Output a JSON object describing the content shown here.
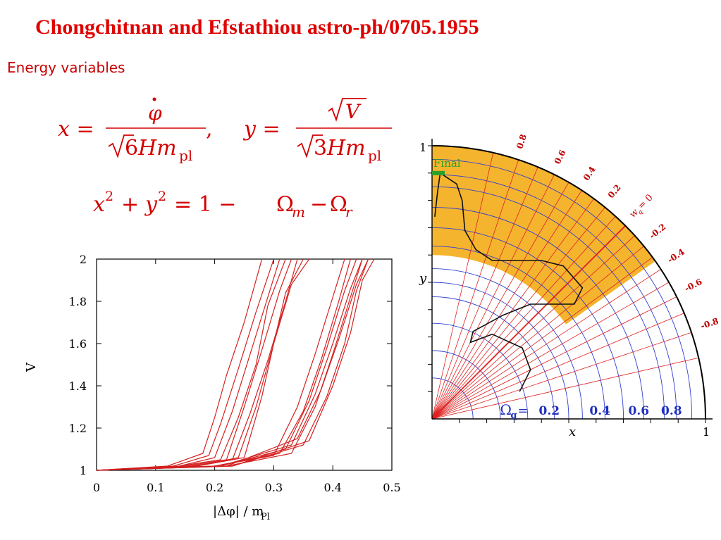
{
  "slide": {
    "title": "Chongchitnan and Efstathiou astro-ph/0705.1955",
    "section": "Energy variables",
    "colors": {
      "title": "#e00000",
      "equation": "#d40000"
    }
  },
  "equations": {
    "x_lhs": "x =",
    "x_num": "φ",
    "x_den_sqrt": "6",
    "x_den_rest": "Hm",
    "x_den_sub": "pl",
    "comma": ",",
    "y_lhs": "y =",
    "y_num": "V",
    "y_den_sqrt": "3",
    "y_den_rest": "Hm",
    "y_den_sub": "pl",
    "energy_line": {
      "x": "x",
      "y": "y",
      "exp": "2",
      "plus": "+",
      "eq": "= 1 −",
      "omega": "Ω",
      "m_sub": "m",
      "minus": "−",
      "r_sub": "r"
    }
  },
  "chart_data": [
    {
      "type": "line",
      "xlabel_main": "|Δφ| / m",
      "xlabel_sub": "Pl",
      "ylabel": "V",
      "xlim": [
        0,
        0.5
      ],
      "ylim": [
        1,
        2
      ],
      "x_ticks": [
        0,
        0.1,
        0.2,
        0.3,
        0.4,
        0.5
      ],
      "y_ticks": [
        1,
        1.2,
        1.4,
        1.6,
        1.8,
        2
      ],
      "x_tick_labels": [
        "0",
        "0.1",
        "0.2",
        "0.3",
        "0.4",
        "0.5"
      ],
      "y_tick_labels": [
        "1",
        "1.2",
        "1.4",
        "1.6",
        "1.8",
        "2"
      ],
      "grid": false,
      "line_color": "#d42020",
      "series": [
        {
          "x": [
            0,
            0.12,
            0.18,
            0.2,
            0.22,
            0.25,
            0.28
          ],
          "y": [
            1,
            1.02,
            1.08,
            1.25,
            1.45,
            1.7,
            2.0
          ]
        },
        {
          "x": [
            0,
            0.13,
            0.19,
            0.21,
            0.24,
            0.27,
            0.3
          ],
          "y": [
            1,
            1.02,
            1.07,
            1.22,
            1.48,
            1.75,
            2.0
          ]
        },
        {
          "x": [
            0,
            0.14,
            0.2,
            0.23,
            0.26,
            0.29,
            0.31
          ],
          "y": [
            1,
            1.02,
            1.06,
            1.28,
            1.55,
            1.82,
            2.0
          ]
        },
        {
          "x": [
            0,
            0.14,
            0.21,
            0.24,
            0.27,
            0.29,
            0.32
          ],
          "y": [
            1,
            1.02,
            1.05,
            1.25,
            1.5,
            1.78,
            2.0
          ]
        },
        {
          "x": [
            0,
            0.15,
            0.22,
            0.25,
            0.28,
            0.31,
            0.33
          ],
          "y": [
            1,
            1.02,
            1.05,
            1.3,
            1.57,
            1.85,
            2.0
          ]
        },
        {
          "x": [
            0,
            0.16,
            0.23,
            0.26,
            0.29,
            0.32,
            0.34
          ],
          "y": [
            1,
            1.02,
            1.05,
            1.27,
            1.52,
            1.8,
            2.0
          ]
        },
        {
          "x": [
            0,
            0.17,
            0.24,
            0.27,
            0.3,
            0.32,
            0.35
          ],
          "y": [
            1,
            1.02,
            1.06,
            1.3,
            1.6,
            1.84,
            2.0
          ]
        },
        {
          "x": [
            0,
            0.17,
            0.25,
            0.28,
            0.3,
            0.33,
            0.36
          ],
          "y": [
            1,
            1.02,
            1.06,
            1.35,
            1.6,
            1.88,
            2.0
          ]
        },
        {
          "x": [
            0,
            0.2,
            0.3,
            0.34,
            0.37,
            0.4,
            0.42
          ],
          "y": [
            1,
            1.02,
            1.07,
            1.3,
            1.55,
            1.82,
            2.0
          ]
        },
        {
          "x": [
            0,
            0.2,
            0.31,
            0.35,
            0.38,
            0.41,
            0.43
          ],
          "y": [
            1,
            1.02,
            1.08,
            1.28,
            1.52,
            1.8,
            2.0
          ]
        },
        {
          "x": [
            0,
            0.21,
            0.32,
            0.36,
            0.39,
            0.42,
            0.44
          ],
          "y": [
            1,
            1.02,
            1.1,
            1.33,
            1.58,
            1.85,
            2.0
          ]
        },
        {
          "x": [
            0,
            0.21,
            0.33,
            0.37,
            0.4,
            0.43,
            0.45
          ],
          "y": [
            1,
            1.02,
            1.12,
            1.36,
            1.6,
            1.86,
            2.0
          ]
        },
        {
          "x": [
            0,
            0.22,
            0.33,
            0.37,
            0.4,
            0.43,
            0.45
          ],
          "y": [
            1,
            1.02,
            1.08,
            1.3,
            1.55,
            1.82,
            2.0
          ]
        },
        {
          "x": [
            0,
            0.22,
            0.34,
            0.38,
            0.41,
            0.44,
            0.46
          ],
          "y": [
            1,
            1.02,
            1.15,
            1.38,
            1.62,
            1.88,
            2.0
          ]
        },
        {
          "x": [
            0,
            0.23,
            0.35,
            0.39,
            0.42,
            0.44,
            0.46
          ],
          "y": [
            1,
            1.02,
            1.12,
            1.35,
            1.6,
            1.85,
            2.0
          ]
        },
        {
          "x": [
            0,
            0.23,
            0.36,
            0.4,
            0.43,
            0.45,
            0.47
          ],
          "y": [
            1,
            1.02,
            1.14,
            1.4,
            1.65,
            1.9,
            2.0
          ]
        }
      ]
    },
    {
      "type": "diagram",
      "xlabel": "x",
      "ylabel": "y",
      "x_max_label": "1",
      "y_max_label": "1",
      "final_label": "Final",
      "omega_label": "Ω",
      "omega_sub": "q",
      "omega_eq": "=",
      "omega_values": [
        "0.2",
        "0.4",
        "0.6",
        "0.8"
      ],
      "omega_radii": [
        0.4472,
        0.6325,
        0.7746,
        0.8944
      ],
      "wq_labels": [
        "-0.8",
        "-0.6",
        "-0.4",
        "-0.2",
        "0.2",
        "0.4",
        "0.6",
        "0.8"
      ],
      "wq_values": [
        -0.8,
        -0.6,
        -0.4,
        -0.2,
        0.2,
        0.4,
        0.6,
        0.8
      ],
      "wq_zero_main": "w",
      "wq_zero_sub": "q",
      "wq_zero_rest": "= 0",
      "accelerating_region_color": "#f5b42e",
      "w_line_color": "#e02020",
      "omega_circle_color": "#3040d0",
      "omega_label_color": "#2030c0",
      "final_marker_color": "#2aa02a",
      "trajectory_color": "#111111"
    }
  ]
}
